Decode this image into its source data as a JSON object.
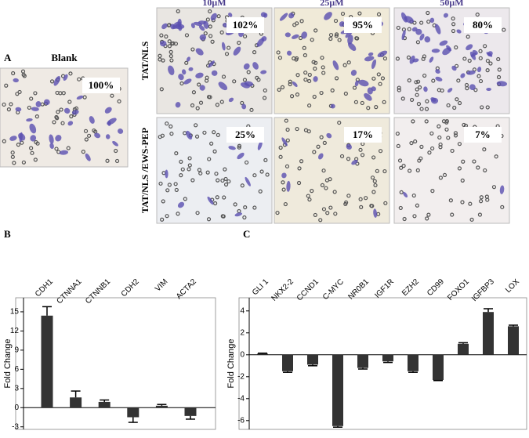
{
  "panel_a": {
    "label": "A",
    "blank": {
      "title": "Blank",
      "percent": "100%"
    },
    "columns": [
      "10μM",
      "25μM",
      "50μM"
    ],
    "rows": [
      {
        "label": "TAT/NLS",
        "percents": [
          "102%",
          "95%",
          "80%"
        ]
      },
      {
        "label": "TAT/NLS /EWS-PEP",
        "percents": [
          "25%",
          "17%",
          "7%"
        ]
      }
    ]
  },
  "chart_data": [
    {
      "type": "bar",
      "panel": "B",
      "y_label": "Fold Change",
      "categories": [
        "CDH1",
        "CTNNA1",
        "CTNNB1",
        "CDH2",
        "VIM",
        "ACTA2"
      ],
      "values": [
        14.4,
        1.6,
        0.9,
        -1.5,
        0.3,
        -1.3
      ],
      "errors": [
        1.4,
        1.0,
        0.3,
        0.8,
        0.2,
        0.5
      ],
      "color": "#333333",
      "ylim": [
        -3.4,
        17.2
      ],
      "yticks": [
        -3,
        0,
        3,
        6,
        9,
        12,
        15
      ]
    },
    {
      "type": "bar",
      "panel": "C",
      "y_label": "Fold Change",
      "categories": [
        "GLI 1",
        "NKX2-2",
        "CCND1",
        "C-MYC",
        "NR0B1",
        "IGF1R",
        "EZH2",
        "CD99",
        "FOXO1",
        "IGFBP3",
        "LOX"
      ],
      "values": [
        0.1,
        -1.5,
        -0.9,
        -6.5,
        -1.2,
        -0.6,
        -1.5,
        -2.3,
        1.0,
        3.9,
        2.6
      ],
      "errors": [
        0.05,
        0.1,
        0.1,
        0.1,
        0.1,
        0.1,
        0.1,
        0.05,
        0.1,
        0.3,
        0.1
      ],
      "color": "#333333",
      "ylim": [
        -6.8,
        5.2
      ],
      "yticks": [
        -6,
        -4,
        -2,
        0,
        2,
        4
      ]
    }
  ]
}
